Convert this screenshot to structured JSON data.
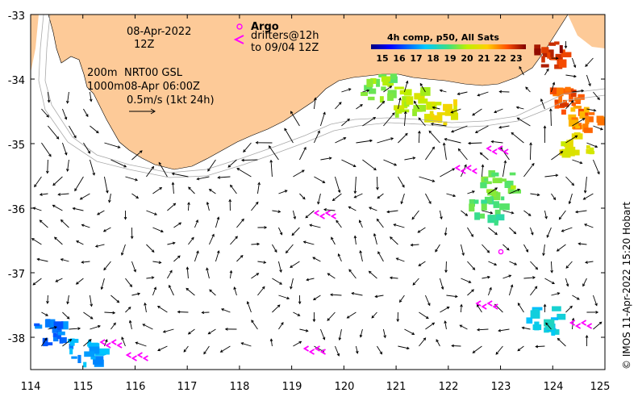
{
  "map": {
    "date": "08-Apr-2022",
    "hour": "12Z",
    "argo_label": "Argo",
    "drifters_label": "drifters@12h",
    "drifters_sub": "to 09/04 12Z",
    "contour_200": "200m",
    "contour_1000": "1000m",
    "nrt_label": "NRT00 GSL",
    "nrt_time": "08-Apr 06:00Z",
    "scale_label": "0.5m/s (1kt 24h)",
    "colorbar_title": "4h comp, p50, All Sats",
    "colorbar_ticks": [
      "15",
      "16",
      "17",
      "18",
      "19",
      "20",
      "21",
      "22",
      "23"
    ],
    "credit": "© IMOS 11-Apr-2022 15:20 Hobart",
    "colors": {
      "land": "#FDCA98",
      "ocean": "#FFFFFF",
      "argo_marker": "#FF00FF",
      "drifter": "#FF00FF",
      "bathymetry": "#A9A9A9"
    },
    "legend_icons": [
      "argo-circle-icon",
      "drifter-arrow-icon"
    ]
  },
  "chart_data": {
    "type": "map",
    "x_axis": {
      "unit": "degrees E longitude",
      "range": [
        114,
        125
      ],
      "ticks": [
        "114",
        "115",
        "116",
        "117",
        "118",
        "119",
        "120",
        "121",
        "122",
        "123",
        "124",
        "125"
      ]
    },
    "y_axis": {
      "unit": "degrees latitude",
      "range": [
        -38.5,
        -33
      ],
      "ticks": [
        "-33",
        "-34",
        "-35",
        "-36",
        "-37",
        "-38"
      ]
    },
    "colorbar": {
      "range": [
        15,
        23
      ],
      "unit": "SST degC"
    },
    "argo_floats": [
      {
        "lon": 123.0,
        "lat": -36.67
      }
    ],
    "drifter_tracks": [
      {
        "lon": 115.5,
        "lat": -38.1
      },
      {
        "lon": 116.0,
        "lat": -38.3
      },
      {
        "lon": 119.6,
        "lat": -36.1
      },
      {
        "lon": 119.4,
        "lat": -38.2
      },
      {
        "lon": 122.7,
        "lat": -37.5
      },
      {
        "lon": 124.5,
        "lat": -37.8
      },
      {
        "lon": 122.3,
        "lat": -35.4
      },
      {
        "lon": 122.9,
        "lat": -35.1
      }
    ],
    "sst_patches": [
      {
        "lon": 124.2,
        "lat": -34.3,
        "sst": 22.0
      },
      {
        "lon": 124.6,
        "lat": -34.6,
        "sst": 21.5
      },
      {
        "lon": 124.4,
        "lat": -35.0,
        "sst": 20.5
      },
      {
        "lon": 123.9,
        "lat": -33.6,
        "sst": 22.5
      },
      {
        "lon": 122.9,
        "lat": -35.6,
        "sst": 19.5
      },
      {
        "lon": 122.7,
        "lat": -36.0,
        "sst": 19.0
      },
      {
        "lon": 121.8,
        "lat": -34.5,
        "sst": 20.5
      },
      {
        "lon": 121.2,
        "lat": -34.3,
        "sst": 20.0
      },
      {
        "lon": 120.6,
        "lat": -34.1,
        "sst": 19.5
      },
      {
        "lon": 115.0,
        "lat": -38.2,
        "sst": 17.5
      },
      {
        "lon": 114.3,
        "lat": -37.9,
        "sst": 17.0
      },
      {
        "lon": 123.8,
        "lat": -37.7,
        "sst": 18.0
      }
    ]
  }
}
